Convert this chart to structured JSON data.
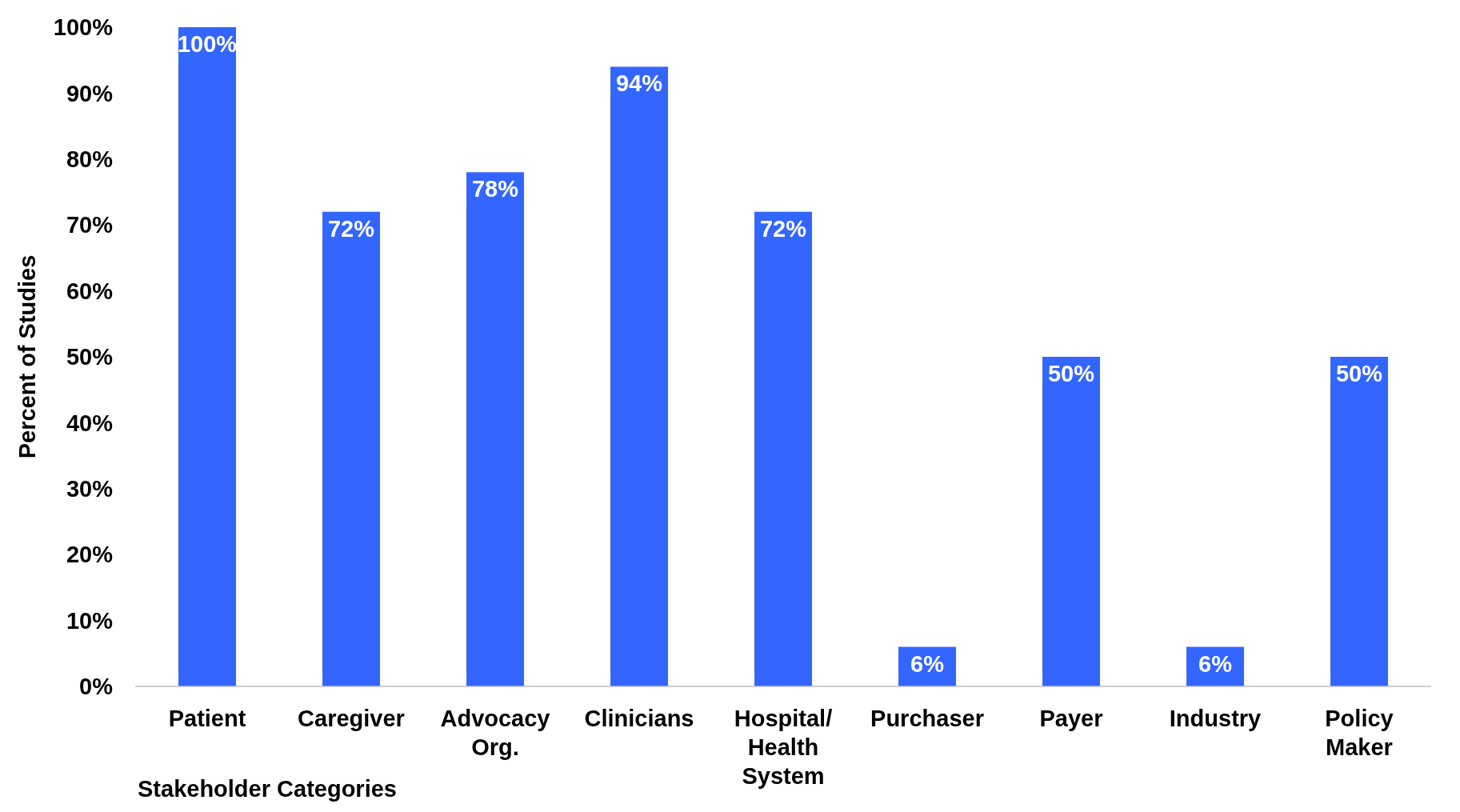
{
  "chart_data": {
    "type": "bar",
    "xlabel": "Stakeholder Categories",
    "ylabel": "Percent of Studies",
    "categories": [
      "Patient",
      "Caregiver",
      "Advocacy Org.",
      "Clinicians",
      "Hospital/ Health System",
      "Purchaser",
      "Payer",
      "Industry",
      "Policy Maker"
    ],
    "values": [
      100,
      72,
      78,
      94,
      72,
      6,
      50,
      6,
      50
    ],
    "value_labels": [
      "100%",
      "72%",
      "78%",
      "94%",
      "72%",
      "6%",
      "50%",
      "6%",
      "50%"
    ],
    "color": "#3366ff",
    "ylim": [
      0,
      100
    ],
    "yticks": [
      {
        "value": 0,
        "label": "0%"
      },
      {
        "value": 10,
        "label": "10%"
      },
      {
        "value": 20,
        "label": "20%"
      },
      {
        "value": 30,
        "label": "30%"
      },
      {
        "value": 40,
        "label": "40%"
      },
      {
        "value": 50,
        "label": "50%"
      },
      {
        "value": 60,
        "label": "60%"
      },
      {
        "value": 70,
        "label": "70%"
      },
      {
        "value": 80,
        "label": "80%"
      },
      {
        "value": 90,
        "label": "90%"
      },
      {
        "value": 100,
        "label": "100%"
      }
    ],
    "grid": false
  }
}
